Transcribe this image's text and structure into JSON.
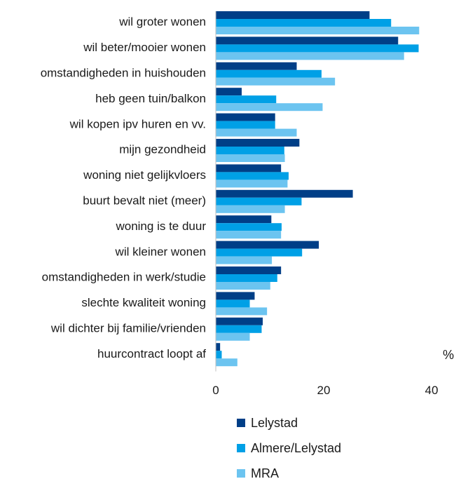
{
  "chart_data": {
    "type": "bar",
    "orientation": "horizontal",
    "categories": [
      "wil groter wonen",
      "wil beter/mooier wonen",
      "omstandigheden in huishouden",
      "heb geen tuin/balkon",
      "wil kopen ipv huren en vv.",
      "mijn gezondheid",
      "woning niet gelijkvloers",
      "buurt bevalt niet (meer)",
      "woning is te duur",
      "wil kleiner wonen",
      "omstandigheden in werk/studie",
      "slechte kwaliteit woning",
      "wil dichter bij familie/vrienden",
      "huurcontract loopt af"
    ],
    "series": [
      {
        "name": "Lelystad",
        "color": "#003f87",
        "values": [
          28.5,
          33.8,
          15,
          4.8,
          11,
          15.5,
          12.1,
          25.4,
          10.3,
          19.1,
          12.1,
          7.2,
          8.7,
          0.8
        ]
      },
      {
        "name": "Almere/Lelystad",
        "color": "#00a0e6",
        "values": [
          32.5,
          37.6,
          19.6,
          11.2,
          11,
          12.7,
          13.5,
          15.9,
          12.2,
          16,
          11.4,
          6.3,
          8.5,
          1.1
        ]
      },
      {
        "name": "MRA",
        "color": "#6cc4f0",
        "values": [
          37.7,
          34.9,
          22.1,
          19.8,
          15,
          12.8,
          13.3,
          12.8,
          12.1,
          10.4,
          10.1,
          9.5,
          6.3,
          4
        ]
      }
    ],
    "xlim": [
      0,
      40
    ],
    "xticks": [
      "0",
      "20",
      "40"
    ],
    "unit_label": "%",
    "legend_position": "bottom"
  }
}
